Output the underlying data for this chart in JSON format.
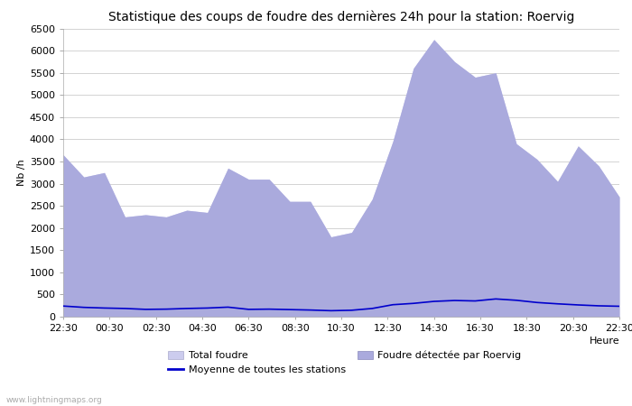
{
  "title": "Statistique des coups de foudre des dernières 24h pour la station: Roervig",
  "ylabel": "Nb /h",
  "xlabel": "Heure",
  "watermark": "www.lightningmaps.org",
  "ylim": [
    0,
    6500
  ],
  "yticks": [
    0,
    500,
    1000,
    1500,
    2000,
    2500,
    3000,
    3500,
    4000,
    4500,
    5000,
    5500,
    6000,
    6500
  ],
  "x_labels": [
    "22:30",
    "00:30",
    "02:30",
    "04:30",
    "06:30",
    "08:30",
    "10:30",
    "12:30",
    "14:30",
    "16:30",
    "18:30",
    "20:30",
    "22:30"
  ],
  "total_foudre": [
    3650,
    3150,
    3250,
    2250,
    2300,
    2250,
    2400,
    2350,
    3350,
    3100,
    3100,
    2600,
    2600,
    1800,
    1900,
    2650,
    3950,
    5600,
    6250,
    5750,
    5400,
    5500,
    3900,
    3550,
    3050,
    3850,
    3400,
    2700
  ],
  "foudre_roervig": [
    3650,
    3150,
    3250,
    2250,
    2300,
    2250,
    2400,
    2350,
    3350,
    3100,
    3100,
    2600,
    2600,
    1800,
    1900,
    2650,
    3950,
    5600,
    6250,
    5750,
    5400,
    5500,
    3900,
    3550,
    3050,
    3850,
    3400,
    2700
  ],
  "moyenne": [
    240,
    210,
    195,
    185,
    165,
    170,
    185,
    195,
    215,
    165,
    170,
    160,
    150,
    135,
    145,
    185,
    270,
    300,
    345,
    365,
    355,
    400,
    370,
    320,
    290,
    265,
    245,
    235
  ],
  "color_total": "#ccccee",
  "color_roervig": "#aaaadd",
  "color_moyenne": "#0000cc",
  "background_color": "#ffffff",
  "grid_color": "#cccccc",
  "title_fontsize": 10,
  "axis_fontsize": 8,
  "tick_fontsize": 8,
  "legend_fontsize": 8
}
